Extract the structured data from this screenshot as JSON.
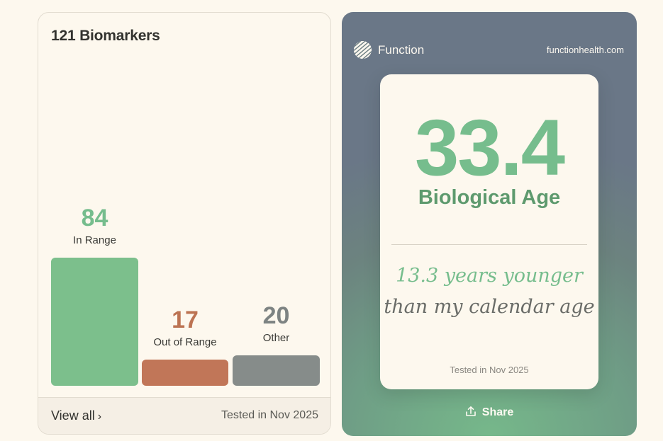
{
  "biomarkers": {
    "title": "121 Biomarkers",
    "bars": [
      {
        "count": "84",
        "label": "In Range",
        "value": 84,
        "color": "#7cbf8c",
        "count_color": "#76bd8d"
      },
      {
        "count": "17",
        "label": "Out of Range",
        "value": 17,
        "color": "#c17658",
        "count_color": "#bc7352"
      },
      {
        "count": "20",
        "label": "Other",
        "value": 20,
        "color": "#868c8a",
        "count_color": "#7d8382"
      }
    ],
    "footer": {
      "view_all": "View all",
      "tested": "Tested in Nov 2025"
    }
  },
  "share_card": {
    "brand": {
      "name": "Function",
      "url": "functionhealth.com",
      "icon": "function-logo-icon"
    },
    "age_value": "33.4",
    "age_label": "Biological Age",
    "younger_line": "13.3 years younger",
    "calendar_line": "than my calendar age",
    "tested": "Tested in Nov 2025",
    "share_label": "Share",
    "share_icon": "share-icon"
  }
}
